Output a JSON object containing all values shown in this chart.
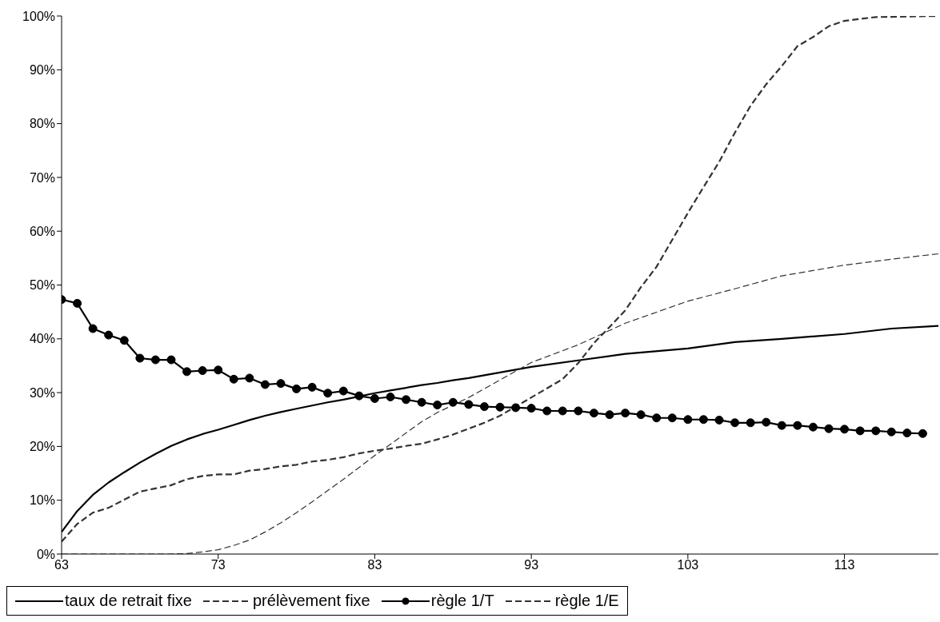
{
  "chart_data": {
    "type": "line",
    "legend": "bottom",
    "grid": false,
    "xlim": [
      63,
      119
    ],
    "xticks": [
      63,
      73,
      83,
      93,
      103,
      113
    ],
    "ylim": [
      0,
      100
    ],
    "yticks": [
      {
        "value": 0,
        "label": "0%"
      },
      {
        "value": 10,
        "label": "10%"
      },
      {
        "value": 20,
        "label": "20%"
      },
      {
        "value": 30,
        "label": "30%"
      },
      {
        "value": 40,
        "label": "40%"
      },
      {
        "value": 50,
        "label": "50%"
      },
      {
        "value": 60,
        "label": "60%"
      },
      {
        "value": 70,
        "label": "70%"
      },
      {
        "value": 80,
        "label": "80%"
      },
      {
        "value": 90,
        "label": "90%"
      },
      {
        "value": 100,
        "label": "100%"
      }
    ],
    "series": [
      {
        "name": "taux de retrait fixe",
        "color": "#000000",
        "line_style": "solid",
        "marker": "none",
        "x": [
          63,
          64,
          65,
          66,
          67,
          68,
          69,
          70,
          71,
          72,
          73,
          74,
          75,
          76,
          77,
          78,
          79,
          80,
          81,
          82,
          83,
          84,
          85,
          86,
          87,
          88,
          89,
          93,
          96,
          99,
          103,
          106,
          109,
          113,
          116,
          119
        ],
        "values": [
          4.1,
          8.0,
          11.0,
          13.3,
          15.2,
          17.0,
          18.6,
          20.1,
          21.3,
          22.3,
          23.1,
          24.0,
          24.9,
          25.7,
          26.4,
          27.0,
          27.6,
          28.2,
          28.7,
          29.3,
          29.9,
          30.4,
          30.9,
          31.4,
          31.8,
          32.3,
          32.7,
          34.8,
          36.0,
          37.2,
          38.2,
          39.4,
          40.0,
          40.9,
          41.9,
          42.4
        ]
      },
      {
        "name": "prélèvement fixe",
        "color": "#333333",
        "line_style": "dashed",
        "marker": "none",
        "x": [
          63,
          70,
          71,
          72,
          73,
          74,
          75,
          76,
          77,
          78,
          79,
          80,
          81,
          82,
          83,
          84,
          85,
          86,
          87,
          88,
          89,
          93,
          96,
          99,
          103,
          106,
          109,
          113,
          116,
          119
        ],
        "values": [
          0,
          0,
          0.1,
          0.4,
          0.8,
          1.6,
          2.6,
          4.1,
          5.8,
          7.7,
          9.7,
          11.8,
          13.9,
          16.1,
          18.3,
          20.4,
          22.5,
          24.6,
          26.3,
          27.7,
          29.1,
          35.6,
          38.9,
          42.9,
          47.0,
          49.3,
          51.7,
          53.7,
          54.8,
          55.8
        ]
      },
      {
        "name": "règle 1/T",
        "color": "#000000",
        "line_style": "solid",
        "marker": "circle",
        "x": [
          63,
          64,
          65,
          66,
          67,
          68,
          69,
          70,
          71,
          72,
          73,
          74,
          75,
          76,
          77,
          78,
          79,
          80,
          81,
          82,
          83,
          84,
          85,
          86,
          87,
          88,
          89,
          90,
          91,
          92,
          93,
          94,
          95,
          96,
          97,
          98,
          99,
          100,
          101,
          102,
          103,
          104,
          105,
          106,
          107,
          108,
          109,
          110,
          111,
          112,
          113,
          114,
          115,
          116,
          117,
          118
        ],
        "values": [
          47.3,
          46.6,
          41.9,
          40.7,
          39.7,
          36.4,
          36.1,
          36.1,
          33.9,
          34.1,
          34.2,
          32.5,
          32.7,
          31.5,
          31.7,
          30.7,
          31.0,
          29.9,
          30.3,
          29.4,
          28.9,
          29.2,
          28.7,
          28.2,
          27.7,
          28.2,
          27.8,
          27.4,
          27.3,
          27.2,
          27.1,
          26.6,
          26.6,
          26.6,
          26.2,
          25.9,
          26.2,
          25.9,
          25.3,
          25.3,
          25.0,
          25.0,
          24.9,
          24.4,
          24.4,
          24.5,
          23.9,
          23.9,
          23.6,
          23.3,
          23.2,
          22.9,
          22.9,
          22.7,
          22.5,
          22.4
        ]
      },
      {
        "name": "règle 1/E",
        "color": "#333333",
        "line_style": "dashed",
        "marker": "none",
        "x": [
          63,
          64,
          65,
          66,
          67,
          68,
          69,
          70,
          71,
          72,
          73,
          74,
          75,
          76,
          77,
          78,
          79,
          80,
          81,
          82,
          83,
          84,
          85,
          86,
          87,
          88,
          89,
          90,
          91,
          92,
          93,
          94,
          95,
          96,
          97,
          98,
          99,
          100,
          101,
          102,
          103,
          104,
          105,
          106,
          107,
          108,
          109,
          110,
          111,
          112,
          113,
          115,
          119
        ],
        "values": [
          2.3,
          5.6,
          7.7,
          8.6,
          10.1,
          11.6,
          12.2,
          12.8,
          13.9,
          14.5,
          14.8,
          14.8,
          15.5,
          15.8,
          16.3,
          16.6,
          17.2,
          17.5,
          18.0,
          18.7,
          19.2,
          19.6,
          20.1,
          20.5,
          21.3,
          22.2,
          23.3,
          24.4,
          25.7,
          27.4,
          29.1,
          30.8,
          32.5,
          35.5,
          39.2,
          42.2,
          45.3,
          49.6,
          53.4,
          58.4,
          63.4,
          68.2,
          72.9,
          78.3,
          83.3,
          87.3,
          90.7,
          94.4,
          96.1,
          98.1,
          99.1,
          99.8,
          100
        ]
      }
    ]
  }
}
